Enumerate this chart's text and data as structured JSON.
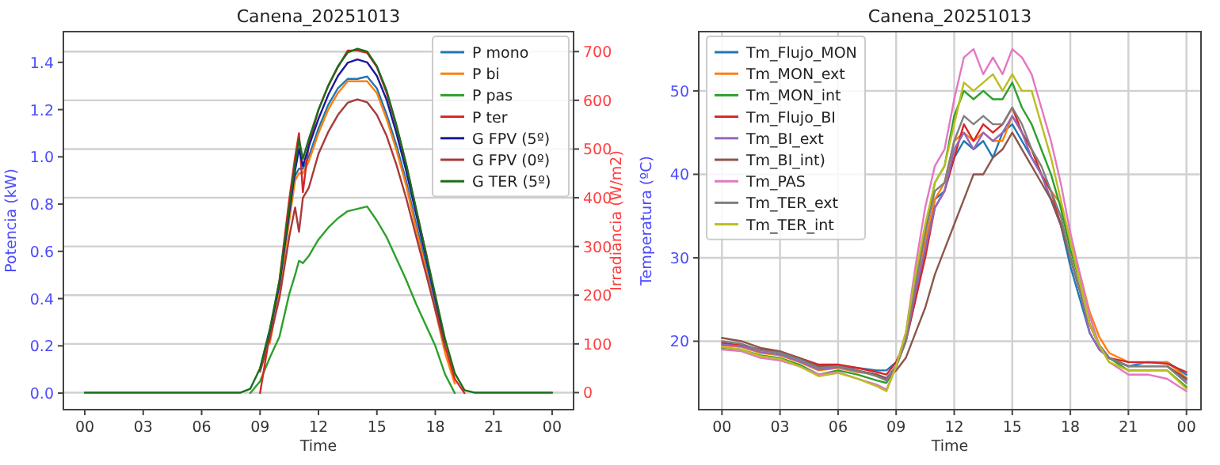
{
  "chart_data": [
    {
      "type": "line",
      "title": "Canena_20251013",
      "xlabel": "Time",
      "ylabel": "Potencia (kW)",
      "y2label": "Irradiancia (W/m2)",
      "x": [
        0,
        8,
        8.5,
        9,
        9.5,
        10,
        10.5,
        10.8,
        11,
        11.2,
        11.5,
        12,
        12.5,
        13,
        13.5,
        14,
        14.5,
        15,
        15.5,
        16,
        16.5,
        17,
        17.5,
        18,
        18.5,
        19,
        19.5,
        20,
        24
      ],
      "xlim": [
        -1.1,
        25.1
      ],
      "xticks": [
        {
          "value": 0,
          "label": "00"
        },
        {
          "value": 3,
          "label": "03"
        },
        {
          "value": 6,
          "label": "06"
        },
        {
          "value": 9,
          "label": "09"
        },
        {
          "value": 12,
          "label": "12"
        },
        {
          "value": 15,
          "label": "15"
        },
        {
          "value": 18,
          "label": "18"
        },
        {
          "value": 21,
          "label": "21"
        },
        {
          "value": 24,
          "label": "00"
        }
      ],
      "ylim": [
        -0.07,
        1.53
      ],
      "yticks": [
        {
          "value": 0,
          "label": "0.0"
        },
        {
          "value": 0.2,
          "label": "0.2"
        },
        {
          "value": 0.4,
          "label": "0.4"
        },
        {
          "value": 0.6,
          "label": "0.6"
        },
        {
          "value": 0.8,
          "label": "0.8"
        },
        {
          "value": 1,
          "label": "1.0"
        },
        {
          "value": 1.2,
          "label": "1.2"
        },
        {
          "value": 1.4,
          "label": "1.4"
        }
      ],
      "y2lim": [
        -35,
        741
      ],
      "y2ticks": [
        0,
        100,
        200,
        300,
        400,
        500,
        600,
        700
      ],
      "grid": "y2",
      "legend": "top right",
      "series": [
        {
          "name": "P mono",
          "color": "#1f77b4",
          "values": [
            null,
            null,
            null,
            null,
            null,
            null,
            0.75,
            0.92,
            0.95,
            0.95,
            1.0,
            1.12,
            1.22,
            1.29,
            1.33,
            1.33,
            1.34,
            1.29,
            1.18,
            1.05,
            0.9,
            0.72,
            0.55,
            0.37,
            0.18,
            null,
            null,
            null,
            null
          ]
        },
        {
          "name": "P bi",
          "color": "#ff7f0e",
          "values": [
            null,
            null,
            null,
            null,
            0.21,
            0.43,
            0.73,
            0.9,
            0.93,
            0.93,
            0.98,
            1.1,
            1.2,
            1.27,
            1.32,
            1.32,
            1.32,
            1.27,
            1.16,
            1.03,
            0.88,
            0.7,
            0.53,
            0.35,
            0.17,
            0.04,
            null,
            null,
            null
          ]
        },
        {
          "name": "P pas",
          "color": "#2ca02c",
          "values": [
            null,
            null,
            0,
            0.05,
            0.15,
            0.24,
            0.42,
            0.5,
            0.56,
            0.55,
            0.58,
            0.65,
            0.7,
            0.74,
            0.77,
            0.78,
            0.79,
            0.73,
            0.66,
            0.57,
            0.48,
            0.38,
            0.29,
            0.2,
            0.08,
            0,
            null,
            null,
            null
          ]
        },
        {
          "name": "P ter",
          "color": "#d62728",
          "values": [
            null,
            null,
            null,
            0,
            0.25,
            0.48,
            0.82,
            1.0,
            1.1,
            0.85,
            1.05,
            1.2,
            1.3,
            1.38,
            1.45,
            1.45,
            1.44,
            1.38,
            1.27,
            1.13,
            0.97,
            0.78,
            0.6,
            0.4,
            0.2,
            0.06,
            0,
            null,
            null
          ]
        },
        {
          "name": "G FPV (5º)",
          "color": "#1a1a9a",
          "axis": "y2",
          "values": [
            null,
            null,
            null,
            48,
            126,
            223,
            369,
            456,
            500,
            465,
            505,
            562,
            611,
            650,
            677,
            684,
            678,
            650,
            601,
            533,
            456,
            369,
            281,
            194,
            107,
            null,
            null,
            null,
            null
          ]
        },
        {
          "name": "G FPV (0º)",
          "color": "#a83a3a",
          "axis": "y2",
          "values": [
            null,
            null,
            null,
            43,
            110,
            195,
            320,
            380,
            330,
            400,
            420,
            490,
            535,
            570,
            595,
            602,
            596,
            570,
            527,
            468,
            400,
            323,
            247,
            170,
            94,
            null,
            null,
            null,
            null
          ]
        },
        {
          "name": "G TER (5º)",
          "color": "#1a6e1a",
          "axis": "y2",
          "values": [
            0,
            0,
            8,
            50,
            130,
            230,
            380,
            470,
            520,
            480,
            520,
            580,
            630,
            670,
            698,
            706,
            700,
            670,
            620,
            550,
            470,
            380,
            290,
            200,
            110,
            40,
            5,
            0,
            0
          ]
        }
      ]
    },
    {
      "type": "line",
      "title": "Canena_20251013",
      "xlabel": "Time",
      "ylabel": "Temperatura (ºC)",
      "x": [
        0,
        1,
        2,
        3,
        4,
        5,
        6,
        7,
        8,
        8.5,
        9,
        9.5,
        10,
        10.5,
        11,
        11.5,
        12,
        12.5,
        13,
        13.5,
        14,
        14.5,
        15,
        15.5,
        16,
        16.5,
        17,
        17.5,
        18,
        18.5,
        19,
        19.5,
        20,
        21,
        22,
        23,
        24
      ],
      "xlim": [
        -1.2,
        24.75
      ],
      "xticks": [
        {
          "value": 0,
          "label": "00"
        },
        {
          "value": 3,
          "label": "03"
        },
        {
          "value": 6,
          "label": "06"
        },
        {
          "value": 9,
          "label": "09"
        },
        {
          "value": 12,
          "label": "12"
        },
        {
          "value": 15,
          "label": "15"
        },
        {
          "value": 18,
          "label": "18"
        },
        {
          "value": 21,
          "label": "21"
        },
        {
          "value": 24,
          "label": "00"
        }
      ],
      "ylim": [
        11.8,
        57.1
      ],
      "yticks": [
        20,
        30,
        40,
        50
      ],
      "grid": true,
      "legend": "top left",
      "series": [
        {
          "name": "Tm_Flujo_MON",
          "color": "#1f77b4",
          "values": [
            null,
            null,
            null,
            null,
            null,
            null,
            17,
            16.8,
            16.5,
            16.5,
            17.5,
            20,
            25,
            31,
            37,
            38,
            42,
            44,
            43,
            44,
            42,
            45,
            46,
            44,
            42,
            40,
            37,
            34,
            29,
            25,
            21,
            19,
            18,
            17,
            17.5,
            17.5,
            16
          ]
        },
        {
          "name": "Tm_MON_ext",
          "color": "#ff7f0e",
          "values": [
            19.5,
            19.3,
            18.6,
            18.3,
            17.5,
            16.5,
            16.8,
            16.3,
            16,
            15.5,
            17,
            20,
            26,
            32,
            37,
            39,
            44,
            45,
            44,
            45,
            44,
            44,
            47,
            45,
            43,
            40,
            38,
            36.5,
            32,
            28,
            23.5,
            20.5,
            18.6,
            17.5,
            17.4,
            17.5,
            15.6
          ]
        },
        {
          "name": "Tm_MON_int",
          "color": "#2ca02c",
          "values": [
            19.2,
            19,
            18.3,
            18,
            17.2,
            16,
            16.5,
            16,
            15.3,
            15,
            17,
            20,
            27,
            33,
            39,
            41,
            47,
            50,
            49,
            50,
            49,
            49,
            51,
            48,
            46,
            43,
            40,
            36,
            31,
            27,
            22,
            19.5,
            18,
            16.5,
            16.5,
            16.5,
            14.5
          ]
        },
        {
          "name": "Tm_Flujo_BI",
          "color": "#d62728",
          "values": [
            19.8,
            19.5,
            19,
            18.7,
            18,
            17.2,
            17.2,
            16.8,
            16.3,
            16,
            17.5,
            20,
            25,
            30,
            36,
            38,
            42,
            46,
            44,
            46,
            45,
            46,
            48,
            45,
            43,
            40,
            38,
            34,
            30,
            26,
            22,
            19.5,
            18,
            17.5,
            17.5,
            17.3,
            16.3
          ]
        },
        {
          "name": "Tm_BI_ext",
          "color": "#9467bd",
          "values": [
            19.6,
            19.4,
            18.7,
            18.4,
            17.6,
            16.6,
            16.9,
            16.4,
            16,
            15.6,
            17,
            20,
            26,
            31,
            36,
            38,
            43,
            45,
            43,
            45,
            44,
            45,
            47,
            45,
            42,
            40,
            37,
            34,
            30,
            26,
            21,
            19,
            18,
            17,
            17,
            17,
            15.3
          ]
        },
        {
          "name": "Tm_BI_int)",
          "color": "#8c564b",
          "values": [
            20.4,
            20,
            19.2,
            18.8,
            18,
            17,
            17,
            16.5,
            16,
            15.5,
            16.5,
            18,
            21,
            24,
            28,
            31,
            34,
            37,
            40,
            40,
            42,
            43,
            45,
            43,
            41,
            39,
            37,
            34,
            30,
            26,
            22,
            19.5,
            18,
            17,
            17,
            17,
            15.5
          ]
        },
        {
          "name": "Tm_PAS",
          "color": "#e377c2",
          "values": [
            19,
            18.8,
            18,
            17.7,
            17,
            16,
            16.3,
            15.5,
            14.8,
            14.2,
            17,
            21,
            29,
            36,
            41,
            43,
            49,
            54,
            55,
            52,
            54,
            52,
            55,
            54,
            52,
            48,
            44,
            39,
            33,
            28,
            23,
            19.5,
            17.5,
            16,
            16,
            15.5,
            14
          ]
        },
        {
          "name": "Tm_TER_ext",
          "color": "#7f7f7f",
          "values": [
            20,
            19.7,
            18.9,
            18.6,
            17.8,
            16.8,
            17,
            16.5,
            15.8,
            15.3,
            17,
            20,
            27,
            33,
            38,
            39,
            44,
            47,
            46,
            47,
            46,
            46,
            48,
            46,
            43,
            41,
            38,
            35,
            30,
            26,
            22,
            19.5,
            18,
            17,
            17,
            17,
            15
          ]
        },
        {
          "name": "Tm_TER_int",
          "color": "#bcbd22",
          "values": [
            19.3,
            19,
            18.2,
            17.9,
            17,
            15.8,
            16.2,
            15.5,
            14.6,
            14,
            17,
            21,
            28,
            34,
            39,
            41,
            46,
            51,
            50,
            51,
            52,
            50,
            52,
            50,
            50,
            46,
            42,
            37,
            32,
            27,
            22,
            19.5,
            17.5,
            16.5,
            16.5,
            16.5,
            14.3
          ]
        }
      ]
    }
  ]
}
